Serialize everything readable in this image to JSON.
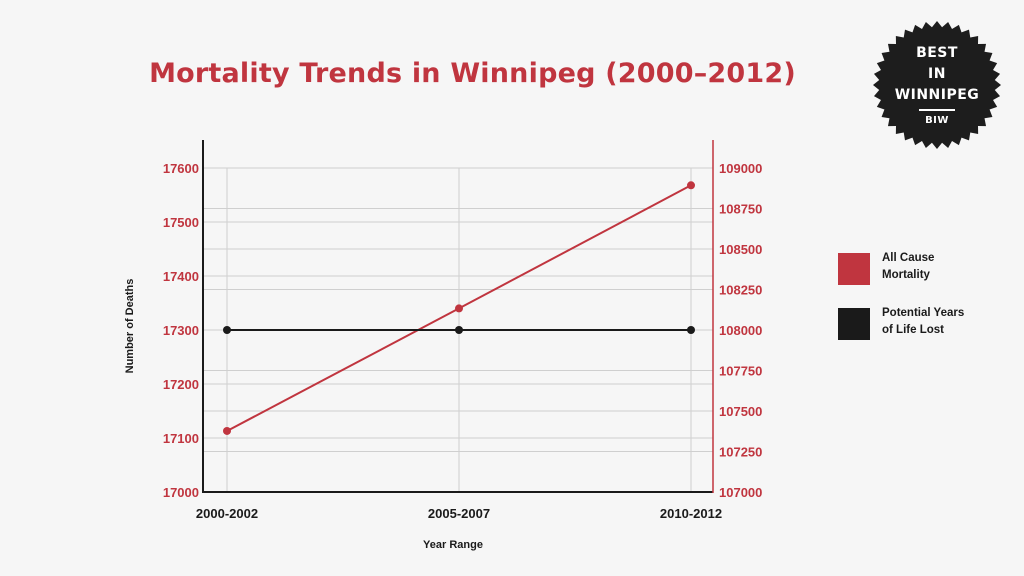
{
  "chart_data": {
    "type": "line",
    "title": "Mortality Trends in Winnipeg (2000–2012)",
    "xlabel": "Year Range",
    "ylabel": "Number of Deaths",
    "categories": [
      "2000-2002",
      "2005-2007",
      "2010-2012"
    ],
    "y_left": {
      "min": 17000,
      "max": 17600,
      "ticks": [
        17000,
        17100,
        17200,
        17300,
        17400,
        17500,
        17600
      ]
    },
    "y_right": {
      "min": 107000,
      "max": 109000,
      "ticks": [
        107000,
        107250,
        107500,
        107750,
        108000,
        108250,
        108500,
        108750,
        109000
      ]
    },
    "series": [
      {
        "name": "All Cause Mortality",
        "axis": "left",
        "color": "#c0353f",
        "values": [
          17113,
          17340,
          17568
        ]
      },
      {
        "name": "Potential Years of Life Lost",
        "axis": "right",
        "color": "#1a1a1a",
        "values": [
          108000,
          108000,
          108000
        ]
      }
    ],
    "grid": true,
    "legend_position": "right"
  },
  "legend": {
    "items": [
      {
        "line1": "All Cause",
        "line2": "Mortality",
        "color": "#c0353f"
      },
      {
        "line1": "Potential Years",
        "line2": "of Life Lost",
        "color": "#1a1a1a"
      }
    ]
  },
  "badge": {
    "line1": "BEST",
    "line2": "IN",
    "line3": "WINNIPEG",
    "abbr": "BIW",
    "color": "#1d1d1d"
  }
}
